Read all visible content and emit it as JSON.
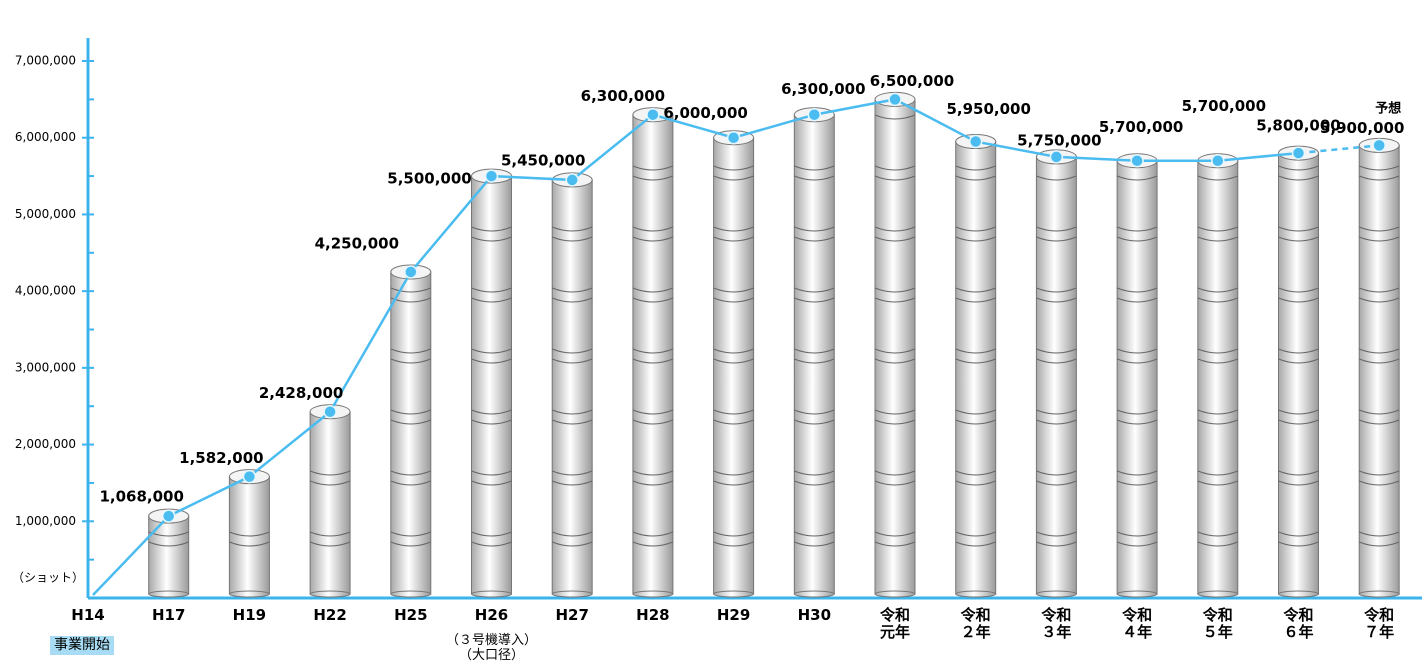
{
  "chart_data": {
    "type": "bar-line",
    "unit_label": "（ショット）",
    "categories": [
      "H14",
      "H17",
      "H19",
      "H22",
      "H25",
      "H26",
      "H27",
      "H28",
      "H29",
      "H30",
      "令和\n元年",
      "令和\n２年",
      "令和\n３年",
      "令和\n４年",
      "令和\n５年",
      "令和\n６年",
      "令和\n７年"
    ],
    "values": [
      0,
      1068000,
      1582000,
      2428000,
      4250000,
      5500000,
      5450000,
      6300000,
      6000000,
      6300000,
      6500000,
      5950000,
      5750000,
      5700000,
      5700000,
      5800000,
      5900000
    ],
    "value_labels": [
      null,
      "1,068,000",
      "1,582,000",
      "2,428,000",
      "4,250,000",
      "5,500,000",
      "5,450,000",
      "6,300,000",
      "6,000,000",
      "6,300,000",
      "6,500,000",
      "5,950,000",
      "5,750,000",
      "5,700,000",
      "5,700,000",
      "5,800,000",
      "5,900,000"
    ],
    "category_notes": [
      {
        "index": 0,
        "text": "事業開始"
      },
      {
        "index": 5,
        "text": "（３号機導入）\n（大口径）"
      }
    ],
    "forecast": {
      "index": 16,
      "label": "予想"
    },
    "line_color": "#4bbcf0",
    "axis_color": "#3bb4ec",
    "ylim": [
      0,
      7300000
    ],
    "yticks": [
      {
        "value": 1000000,
        "label": "1,000,000"
      },
      {
        "value": 2000000,
        "label": "2,000,000"
      },
      {
        "value": 3000000,
        "label": "3,000,000"
      },
      {
        "value": 4000000,
        "label": "4,000,000"
      },
      {
        "value": 5000000,
        "label": "5,000,000"
      },
      {
        "value": 6000000,
        "label": "6,000,000"
      },
      {
        "value": 7000000,
        "label": "7,000,000"
      }
    ],
    "minor_yticks": [
      500000,
      1500000,
      2500000,
      3500000,
      4500000,
      5500000,
      6500000
    ]
  }
}
